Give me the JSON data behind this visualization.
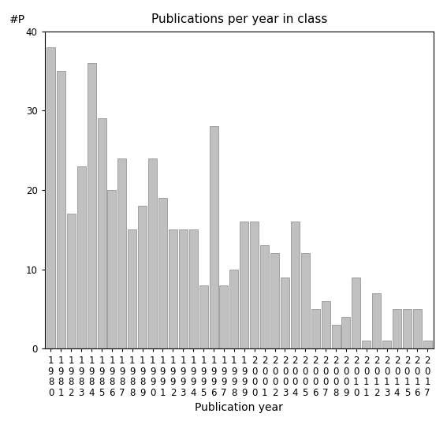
{
  "title": "Publications per year in class",
  "xlabel": "Publication year",
  "ylabel": "#P",
  "years": [
    "1980",
    "1981",
    "1982",
    "1983",
    "1984",
    "1985",
    "1986",
    "1987",
    "1988",
    "1989",
    "1990",
    "1991",
    "1992",
    "1993",
    "1994",
    "1995",
    "1996",
    "1997",
    "1998",
    "1999",
    "2000",
    "2001",
    "2002",
    "2003",
    "2004",
    "2005",
    "2006",
    "2007",
    "2008",
    "2009",
    "2010",
    "2011",
    "2012",
    "2013",
    "2014",
    "2015",
    "2016",
    "2017"
  ],
  "values": [
    38,
    35,
    17,
    23,
    36,
    29,
    20,
    24,
    15,
    18,
    24,
    19,
    15,
    15,
    15,
    8,
    28,
    8,
    10,
    16,
    16,
    13,
    12,
    9,
    16,
    12,
    5,
    6,
    3,
    4,
    9,
    1,
    7,
    1,
    5,
    5,
    5,
    1
  ],
  "bar_color": "#c0c0c0",
  "bar_edgecolor": "#888888",
  "ylim": [
    0,
    40
  ],
  "yticks": [
    0,
    10,
    20,
    30,
    40
  ],
  "bg_color": "#ffffff",
  "title_fontsize": 11,
  "label_fontsize": 10,
  "tick_fontsize": 8.5
}
